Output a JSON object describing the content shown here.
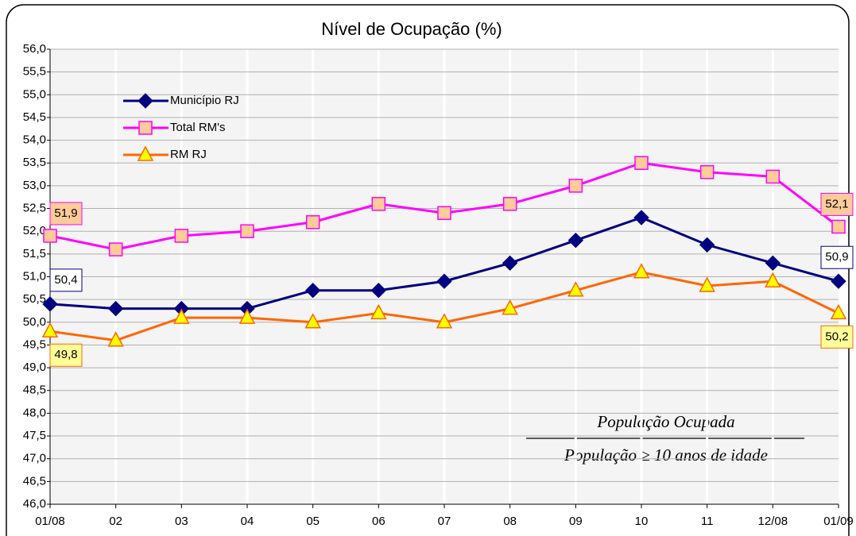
{
  "chart_data": {
    "type": "line",
    "title": "Nível de Ocupação (%)",
    "categories": [
      "01/08",
      "02",
      "03",
      "04",
      "05",
      "06",
      "07",
      "08",
      "09",
      "10",
      "11",
      "12/08",
      "01/09"
    ],
    "series": [
      {
        "name": "Município RJ",
        "color": "#000080",
        "marker": "diamond",
        "values": [
          50.4,
          50.3,
          50.3,
          50.3,
          50.7,
          50.7,
          50.9,
          51.3,
          51.8,
          52.3,
          51.7,
          51.3,
          50.9
        ],
        "value_labels": [
          "50,4",
          null,
          null,
          null,
          null,
          null,
          null,
          null,
          null,
          null,
          null,
          null,
          "50,9"
        ]
      },
      {
        "name": "Total RM's",
        "color": "#ff00ff",
        "marker": "square",
        "marker_fill": "#ffcc99",
        "values": [
          51.9,
          51.6,
          51.9,
          52.0,
          52.2,
          52.6,
          52.4,
          52.6,
          53.0,
          53.5,
          53.3,
          53.2,
          52.1
        ],
        "value_labels": [
          "51,9",
          null,
          null,
          null,
          null,
          null,
          null,
          null,
          null,
          null,
          null,
          null,
          "52,1"
        ]
      },
      {
        "name": "RM RJ",
        "color": "#ff6600",
        "marker": "triangle",
        "marker_fill": "#ffff00",
        "values": [
          49.8,
          49.6,
          50.1,
          50.1,
          50.0,
          50.2,
          50.0,
          50.3,
          50.7,
          51.1,
          50.8,
          50.9,
          50.2
        ],
        "value_labels": [
          "49,8",
          null,
          null,
          null,
          null,
          null,
          null,
          null,
          null,
          null,
          null,
          null,
          "50,2"
        ]
      }
    ],
    "ylim": [
      46,
      56
    ],
    "yticks": [
      {
        "value": 46,
        "label": "46,0"
      },
      {
        "value": 46.5,
        "label": "46,5"
      },
      {
        "value": 47,
        "label": "47,0"
      },
      {
        "value": 47.5,
        "label": "47,5"
      },
      {
        "value": 48,
        "label": "48,0"
      },
      {
        "value": 48.5,
        "label": "48,5"
      },
      {
        "value": 49,
        "label": "49,0"
      },
      {
        "value": 49.5,
        "label": "49,5"
      },
      {
        "value": 50,
        "label": "50,0"
      },
      {
        "value": 50.5,
        "label": "50,5"
      },
      {
        "value": 51,
        "label": "51,0"
      },
      {
        "value": 51.5,
        "label": "51,5"
      },
      {
        "value": 52,
        "label": "52,0"
      },
      {
        "value": 52.5,
        "label": "52,5"
      },
      {
        "value": 53,
        "label": "53,0"
      },
      {
        "value": 53.5,
        "label": "53,5"
      },
      {
        "value": 54,
        "label": "54,0"
      },
      {
        "value": 54.5,
        "label": "54,5"
      },
      {
        "value": 55,
        "label": "55,0"
      },
      {
        "value": 55.5,
        "label": "55,5"
      },
      {
        "value": 56,
        "label": "56,0"
      }
    ],
    "grid": true,
    "legend": "upper left",
    "annotation": {
      "numerator": "População Ocupada",
      "denominator": "População ≥ 10 anos de idade"
    }
  }
}
